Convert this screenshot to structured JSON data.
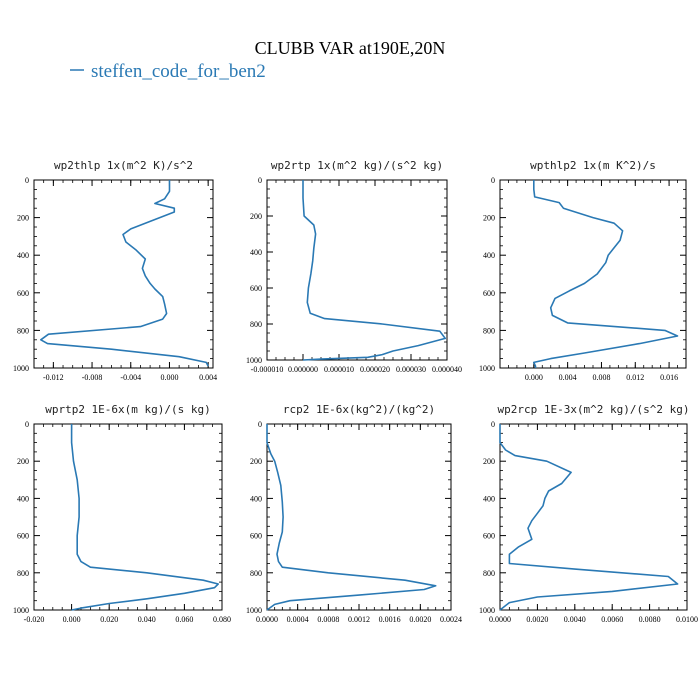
{
  "figure": {
    "title": "CLUBB VAR at190E,20N",
    "legend": [
      {
        "label": "steffen_code_for_ben2",
        "color": "#2a79b4"
      }
    ],
    "legend_placement": "top-left",
    "line_color": "#2a79b4",
    "axis_color": "#000000"
  },
  "chart_data": [
    {
      "type": "line",
      "title": "wp2thlp  1x(m^2 K)/s^2",
      "xlim": [
        -0.014,
        0.0045
      ],
      "ylim": [
        1000,
        0
      ],
      "xticks": [
        -0.012,
        -0.008,
        -0.004,
        0.0,
        0.004
      ],
      "xticklabels": [
        "-0.012",
        "-0.008",
        "-0.004",
        "0.000",
        "0.004"
      ],
      "yticks": [
        0,
        200,
        400,
        600,
        800,
        1000
      ],
      "yticklabels": [
        "0",
        "200",
        "400",
        "600",
        "800",
        "1000"
      ],
      "series": [
        {
          "x": [
            0.0,
            0.0,
            -0.0005,
            -0.0015,
            0.0005,
            0.0005,
            -0.002,
            -0.004,
            -0.0048,
            -0.0045,
            -0.0035,
            -0.0025,
            -0.0028,
            -0.0025,
            -0.002,
            -0.0015,
            -0.0007,
            -0.0005,
            -0.0003,
            -0.0007,
            -0.003,
            -0.0125,
            -0.0133,
            -0.0126,
            -0.006,
            0.001,
            0.0038,
            0.004
          ],
          "y": [
            0,
            60,
            100,
            125,
            150,
            170,
            220,
            260,
            290,
            330,
            370,
            420,
            470,
            510,
            550,
            580,
            620,
            660,
            710,
            740,
            780,
            820,
            850,
            870,
            900,
            940,
            970,
            990
          ]
        }
      ]
    },
    {
      "type": "line",
      "title": "wp2rtp  1x(m^2 kg)/(s^2 kg)",
      "xlim": [
        -1e-05,
        4e-05
      ],
      "ylim": [
        1000,
        0
      ],
      "xticks": [
        -1e-05,
        0.0,
        1e-05,
        2e-05,
        3e-05,
        4e-05
      ],
      "xticklabels": [
        "-0.000010",
        "0.000000",
        "0.000010",
        "0.000020",
        "0.000030",
        "0.000040"
      ],
      "yticks": [
        0,
        200,
        400,
        600,
        800,
        1000
      ],
      "yticklabels": [
        "0",
        "200",
        "400",
        "600",
        "800",
        "1000"
      ],
      "series": [
        {
          "x": [
            0.0,
            0.0,
            3e-07,
            3e-06,
            3.5e-06,
            3e-06,
            2.7e-06,
            2.2e-06,
            1.5e-06,
            1.2e-06,
            2e-06,
            6e-06,
            2.2e-05,
            3.8e-05,
            3.95e-05,
            3.2e-05,
            2.5e-05,
            2.2e-05,
            1.8e-05,
            5e-06,
            0.0
          ],
          "y": [
            0,
            100,
            200,
            250,
            300,
            380,
            450,
            520,
            600,
            680,
            740,
            770,
            800,
            840,
            880,
            920,
            950,
            970,
            985,
            995,
            1000
          ]
        }
      ]
    },
    {
      "type": "line",
      "title": "wpthlp2  1x(m K^2)/s",
      "xlim": [
        -0.004,
        0.018
      ],
      "ylim": [
        1000,
        0
      ],
      "xticks": [
        0.0,
        0.004,
        0.008,
        0.012,
        0.016
      ],
      "xticklabels": [
        "0.000",
        "0.004",
        "0.008",
        "0.012",
        "0.016"
      ],
      "yticks": [
        0,
        200,
        400,
        600,
        800,
        1000
      ],
      "yticklabels": [
        "0",
        "200",
        "400",
        "600",
        "800",
        "1000"
      ],
      "series": [
        {
          "x": [
            0.0,
            0.0,
            0.0001,
            0.003,
            0.0035,
            0.007,
            0.0095,
            0.0105,
            0.0102,
            0.0095,
            0.0088,
            0.0085,
            0.0075,
            0.006,
            0.0042,
            0.0025,
            0.002,
            0.0022,
            0.004,
            0.0155,
            0.017,
            0.0125,
            0.006,
            0.002,
            0.0,
            0.0002,
            0.0002
          ],
          "y": [
            0,
            50,
            90,
            120,
            150,
            200,
            230,
            270,
            320,
            360,
            400,
            440,
            500,
            550,
            590,
            630,
            680,
            720,
            760,
            800,
            830,
            870,
            920,
            950,
            970,
            990,
            1000
          ]
        }
      ]
    },
    {
      "type": "line",
      "title": "wprtp2  1E-6x(m kg)/(s kg)",
      "xlim": [
        -0.02,
        0.08
      ],
      "ylim": [
        1000,
        0
      ],
      "xticks": [
        -0.02,
        0.0,
        0.02,
        0.04,
        0.06,
        0.08
      ],
      "xticklabels": [
        "-0.020",
        "0.000",
        "0.020",
        "0.040",
        "0.060",
        "0.080"
      ],
      "yticks": [
        0,
        200,
        400,
        600,
        800,
        1000
      ],
      "yticklabels": [
        "0",
        "200",
        "400",
        "600",
        "800",
        "1000"
      ],
      "series": [
        {
          "x": [
            0.0,
            0.0,
            0.001,
            0.003,
            0.004,
            0.004,
            0.003,
            0.003,
            0.005,
            0.01,
            0.04,
            0.07,
            0.078,
            0.076,
            0.06,
            0.04,
            0.02,
            0.005,
            0.0
          ],
          "y": [
            0,
            100,
            200,
            300,
            400,
            500,
            600,
            700,
            740,
            770,
            800,
            840,
            860,
            880,
            910,
            940,
            965,
            990,
            1000
          ]
        }
      ]
    },
    {
      "type": "line",
      "title": "rcp2  1E-6x(kg^2)/(kg^2)",
      "xlim": [
        0.0,
        0.0024
      ],
      "ylim": [
        1000,
        0
      ],
      "xticks": [
        0.0,
        0.0004,
        0.0008,
        0.0012,
        0.0016,
        0.002,
        0.0024
      ],
      "xticklabels": [
        "0.0000",
        "0.0004",
        "0.0008",
        "0.0012",
        "0.0016",
        "0.0020",
        "0.0024"
      ],
      "yticks": [
        0,
        200,
        400,
        600,
        800,
        1000
      ],
      "yticklabels": [
        "0",
        "200",
        "400",
        "600",
        "800",
        "1000"
      ],
      "series": [
        {
          "x": [
            0.0,
            0.0,
            5e-05,
            0.0001,
            0.00014,
            0.00018,
            0.0002,
            0.00021,
            0.0002,
            0.00016,
            0.00013,
            0.00015,
            0.0002,
            0.0008,
            0.0018,
            0.0022,
            0.00205,
            0.0012,
            0.0003,
            0.0001,
            0.0
          ],
          "y": [
            0,
            100,
            160,
            200,
            260,
            330,
            420,
            500,
            580,
            640,
            700,
            740,
            770,
            800,
            840,
            870,
            890,
            920,
            950,
            970,
            1000
          ]
        }
      ]
    },
    {
      "type": "line",
      "title": "wp2rcp  1E-3x(m^2 kg)/(s^2 kg)",
      "xlim": [
        0.0,
        0.01
      ],
      "ylim": [
        1000,
        0
      ],
      "xticks": [
        0.0,
        0.002,
        0.004,
        0.006,
        0.008,
        0.01
      ],
      "xticklabels": [
        "0.0000",
        "0.0020",
        "0.0040",
        "0.0060",
        "0.0080",
        "0.0100"
      ],
      "yticks": [
        0,
        200,
        400,
        600,
        800,
        1000
      ],
      "yticklabels": [
        "0",
        "200",
        "400",
        "600",
        "800",
        "1000"
      ],
      "series": [
        {
          "x": [
            0.0,
            0.0,
            0.0003,
            0.0008,
            0.0025,
            0.0038,
            0.0033,
            0.0026,
            0.0024,
            0.0023,
            0.002,
            0.0017,
            0.0015,
            0.0017,
            0.001,
            0.0005,
            0.0005,
            0.004,
            0.009,
            0.0095,
            0.006,
            0.002,
            0.0005,
            0.0
          ],
          "y": [
            0,
            100,
            140,
            170,
            200,
            260,
            320,
            360,
            400,
            440,
            480,
            520,
            560,
            620,
            660,
            700,
            750,
            780,
            820,
            860,
            900,
            930,
            960,
            1000
          ]
        }
      ]
    }
  ]
}
